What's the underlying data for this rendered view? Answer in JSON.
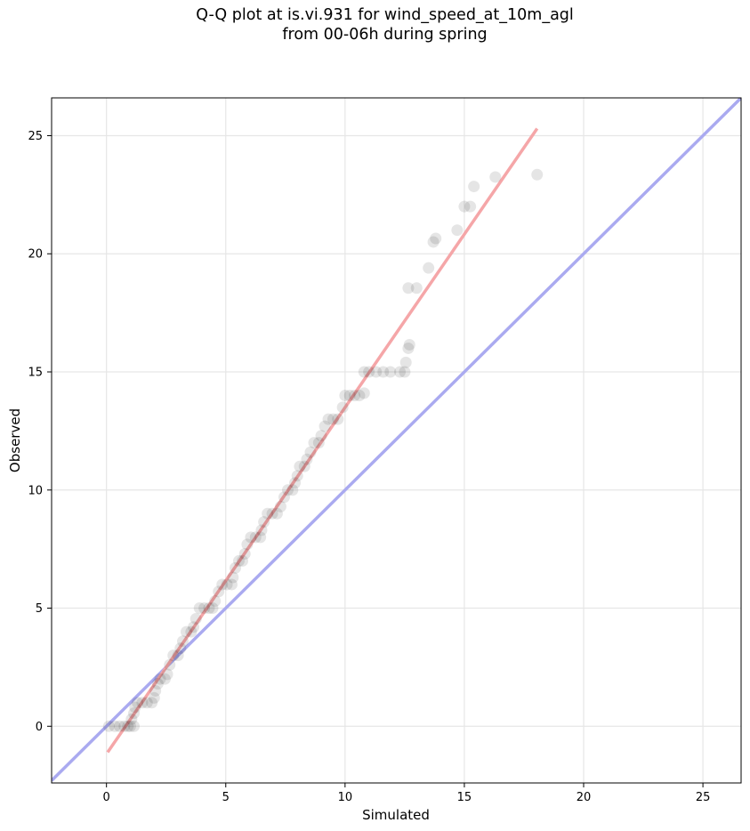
{
  "chart_data": {
    "type": "scatter",
    "title_lines": [
      "Q-Q plot at is.vi.931 for wind_speed_at_10m_agl",
      "from 00-06h during spring"
    ],
    "xlabel": "Simulated",
    "ylabel": "Observed",
    "xlim": [
      -2.3,
      26.6
    ],
    "ylim": [
      -2.4,
      26.6
    ],
    "xticks": [
      0,
      5,
      10,
      15,
      20,
      25
    ],
    "yticks": [
      0,
      5,
      10,
      15,
      20,
      25
    ],
    "grid": true,
    "colors": {
      "points": "#000000",
      "identity_line": "#aaaaf0",
      "fit_line": "#f5a6a8"
    },
    "identity_line": {
      "x": [
        -2.3,
        26.6
      ],
      "y": [
        -2.3,
        26.6
      ]
    },
    "fit_line": {
      "x": [
        0.05,
        18.05
      ],
      "y": [
        -1.1,
        25.3
      ]
    },
    "points": [
      [
        0.1,
        0
      ],
      [
        0.35,
        0
      ],
      [
        0.55,
        0
      ],
      [
        0.75,
        0
      ],
      [
        0.9,
        0
      ],
      [
        1.0,
        0
      ],
      [
        1.15,
        0
      ],
      [
        1.05,
        0.3
      ],
      [
        1.15,
        0.55
      ],
      [
        1.2,
        0.8
      ],
      [
        1.3,
        1
      ],
      [
        1.5,
        1
      ],
      [
        1.7,
        1
      ],
      [
        1.9,
        1
      ],
      [
        2.0,
        1.2
      ],
      [
        2.05,
        1.5
      ],
      [
        2.15,
        1.8
      ],
      [
        2.25,
        2
      ],
      [
        2.45,
        2
      ],
      [
        2.55,
        2.2
      ],
      [
        2.65,
        2.6
      ],
      [
        2.8,
        3
      ],
      [
        3.0,
        3
      ],
      [
        3.1,
        3.3
      ],
      [
        3.2,
        3.6
      ],
      [
        3.35,
        4
      ],
      [
        3.55,
        4
      ],
      [
        3.65,
        4.2
      ],
      [
        3.75,
        4.55
      ],
      [
        3.9,
        5
      ],
      [
        4.1,
        5
      ],
      [
        4.3,
        5
      ],
      [
        4.45,
        5
      ],
      [
        4.55,
        5.3
      ],
      [
        4.7,
        5.7
      ],
      [
        4.85,
        6
      ],
      [
        5.05,
        6
      ],
      [
        5.25,
        6
      ],
      [
        5.3,
        6.3
      ],
      [
        5.4,
        6.7
      ],
      [
        5.55,
        7
      ],
      [
        5.7,
        7
      ],
      [
        5.8,
        7.3
      ],
      [
        5.9,
        7.7
      ],
      [
        6.05,
        8
      ],
      [
        6.25,
        8
      ],
      [
        6.45,
        8
      ],
      [
        6.5,
        8.3
      ],
      [
        6.6,
        8.65
      ],
      [
        6.75,
        9
      ],
      [
        6.95,
        9
      ],
      [
        7.15,
        9
      ],
      [
        7.3,
        9.3
      ],
      [
        7.45,
        9.7
      ],
      [
        7.6,
        10
      ],
      [
        7.8,
        10
      ],
      [
        7.9,
        10.3
      ],
      [
        8.0,
        10.6
      ],
      [
        8.1,
        11
      ],
      [
        8.3,
        11
      ],
      [
        8.4,
        11.3
      ],
      [
        8.55,
        11.6
      ],
      [
        8.7,
        12
      ],
      [
        8.9,
        12
      ],
      [
        9.0,
        12.3
      ],
      [
        9.15,
        12.7
      ],
      [
        9.3,
        13
      ],
      [
        9.5,
        13
      ],
      [
        9.7,
        13
      ],
      [
        9.9,
        13.5
      ],
      [
        10.0,
        14
      ],
      [
        10.2,
        14
      ],
      [
        10.4,
        14
      ],
      [
        10.6,
        14
      ],
      [
        10.8,
        14.1
      ],
      [
        10.8,
        15
      ],
      [
        11.0,
        15
      ],
      [
        11.3,
        15
      ],
      [
        11.6,
        15
      ],
      [
        11.9,
        15
      ],
      [
        12.3,
        15
      ],
      [
        12.5,
        15
      ],
      [
        12.55,
        15.4
      ],
      [
        12.65,
        16.0
      ],
      [
        12.7,
        16.15
      ],
      [
        12.65,
        18.55
      ],
      [
        13.0,
        18.55
      ],
      [
        13.5,
        19.4
      ],
      [
        13.7,
        20.5
      ],
      [
        13.8,
        20.65
      ],
      [
        14.7,
        21.0
      ],
      [
        15.0,
        22.0
      ],
      [
        15.25,
        22.0
      ],
      [
        15.4,
        22.85
      ],
      [
        16.3,
        23.25
      ],
      [
        18.05,
        23.35
      ]
    ]
  }
}
